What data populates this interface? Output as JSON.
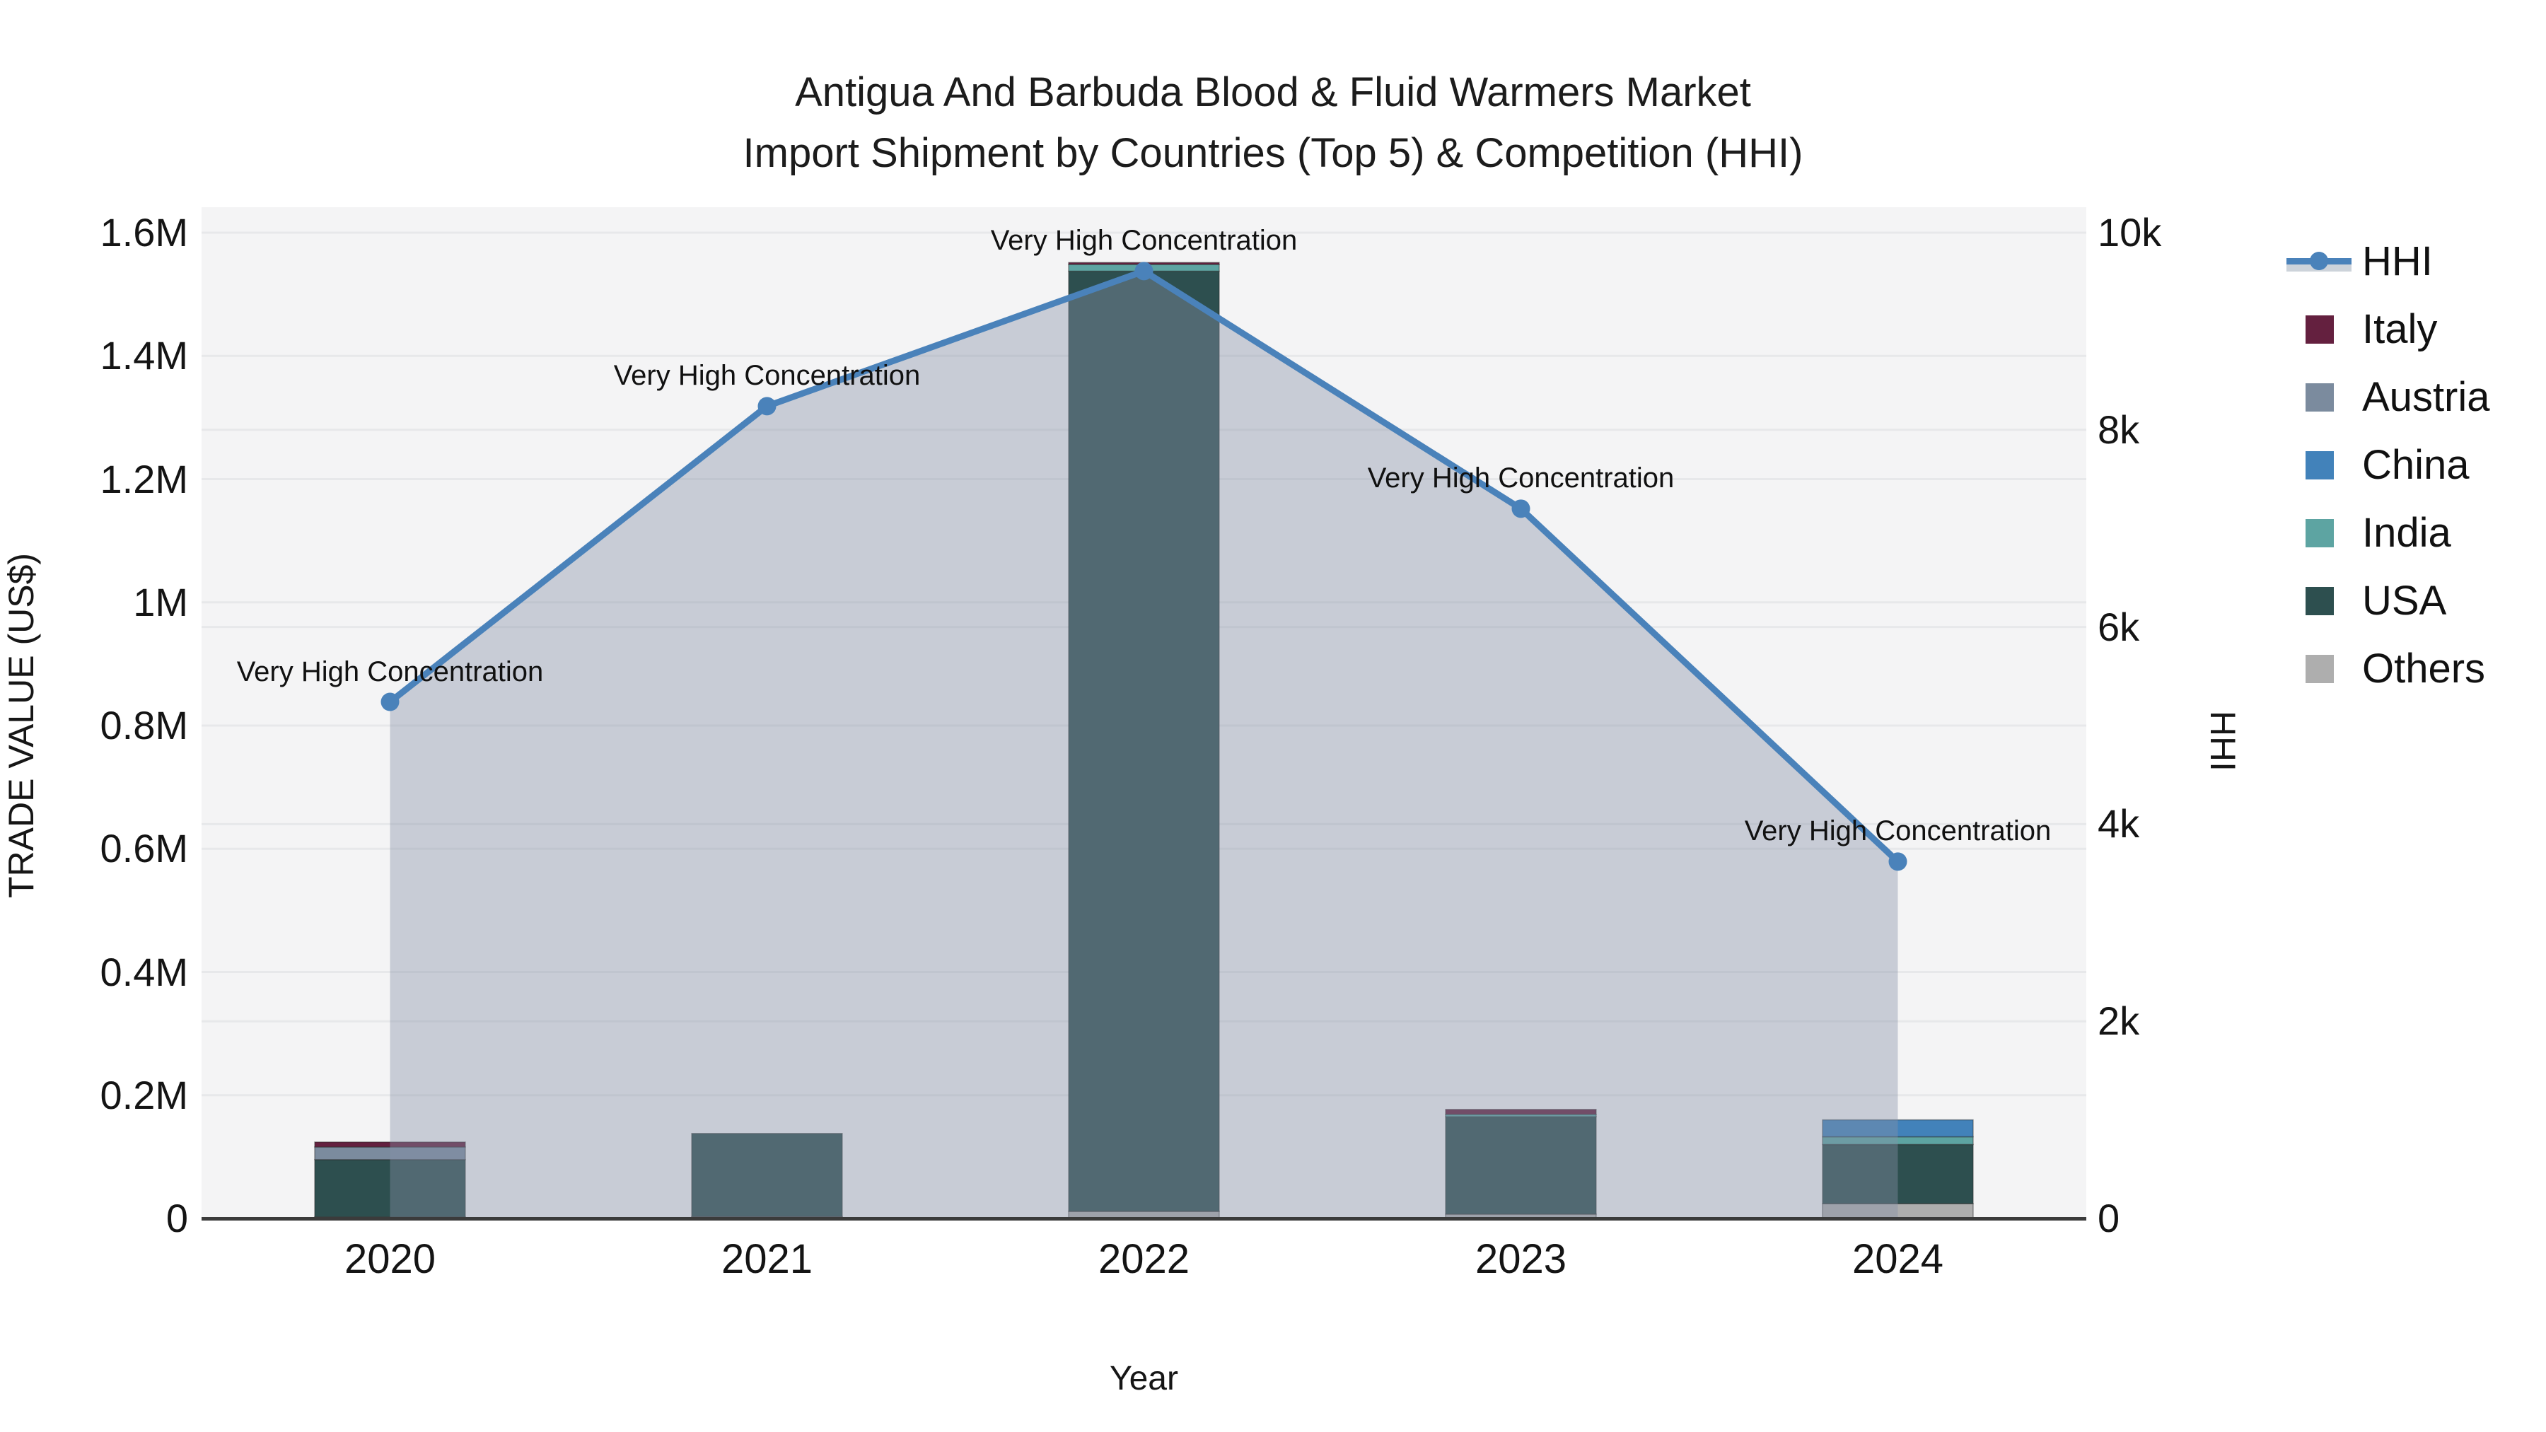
{
  "title": {
    "line1": "Antigua And Barbuda Blood & Fluid Warmers Market",
    "line2": "Import Shipment by Countries (Top 5) & Competition (HHI)"
  },
  "axes": {
    "x": {
      "title": "Year",
      "categories": [
        "2020",
        "2021",
        "2022",
        "2023",
        "2024"
      ]
    },
    "y_left": {
      "title": "TRADE VALUE (US$)",
      "max": 1600000,
      "ticks": [
        {
          "value": 0,
          "label": "0"
        },
        {
          "value": 200000,
          "label": "0.2M"
        },
        {
          "value": 400000,
          "label": "0.4M"
        },
        {
          "value": 600000,
          "label": "0.6M"
        },
        {
          "value": 800000,
          "label": "0.8M"
        },
        {
          "value": 1000000,
          "label": "1M"
        },
        {
          "value": 1200000,
          "label": "1.2M"
        },
        {
          "value": 1400000,
          "label": "1.4M"
        },
        {
          "value": 1600000,
          "label": "1.6M"
        }
      ]
    },
    "y_right": {
      "title": "HHI",
      "max": 10000,
      "ticks": [
        {
          "value": 0,
          "label": "0"
        },
        {
          "value": 2000,
          "label": "2k"
        },
        {
          "value": 4000,
          "label": "4k"
        },
        {
          "value": 6000,
          "label": "6k"
        },
        {
          "value": 8000,
          "label": "8k"
        },
        {
          "value": 10000,
          "label": "10k"
        }
      ]
    }
  },
  "colors": {
    "hhi_line": "#4a82ba",
    "hhi_fill": "rgba(134,146,167,0.40)",
    "italy": "#64203f",
    "austria": "#7b8b9e",
    "china": "#4282ba",
    "india": "#5da4a2",
    "usa": "#2d4f4f",
    "others": "#aeaeae",
    "plot_bg": "#f4f4f5",
    "gridline": "#e7e8ea",
    "axis_line": "#3b3b3b"
  },
  "legend": [
    {
      "key": "hhi",
      "label": "HHI",
      "type": "line"
    },
    {
      "key": "italy",
      "label": "Italy",
      "type": "square",
      "color": "#64203f"
    },
    {
      "key": "austria",
      "label": "Austria",
      "type": "square",
      "color": "#7b8b9e"
    },
    {
      "key": "china",
      "label": "China",
      "type": "square",
      "color": "#4282ba"
    },
    {
      "key": "india",
      "label": "India",
      "type": "square",
      "color": "#5da4a2"
    },
    {
      "key": "usa",
      "label": "USA",
      "type": "square",
      "color": "#2d4f4f"
    },
    {
      "key": "others",
      "label": "Others",
      "type": "square",
      "color": "#aeaeae"
    }
  ],
  "chart_data": {
    "type": "bar+line",
    "categories": [
      "2020",
      "2021",
      "2022",
      "2023",
      "2024"
    ],
    "bar_stack_order_bottom_to_top": [
      "Others",
      "USA",
      "India",
      "China",
      "Austria",
      "Italy"
    ],
    "bar_series": [
      {
        "name": "Others",
        "color": "#aeaeae",
        "values": [
          2500,
          3000,
          11500,
          7000,
          24000
        ]
      },
      {
        "name": "USA",
        "color": "#2d4f4f",
        "values": [
          93000,
          135000,
          1526000,
          158000,
          96000
        ]
      },
      {
        "name": "India",
        "color": "#5da4a2",
        "values": [
          0,
          0,
          11000,
          4000,
          12500
        ]
      },
      {
        "name": "China",
        "color": "#4282ba",
        "values": [
          0,
          0,
          0,
          0,
          27500
        ]
      },
      {
        "name": "Austria",
        "color": "#7b8b9e",
        "values": [
          20500,
          0,
          0,
          0,
          0
        ]
      },
      {
        "name": "Italy",
        "color": "#64203f",
        "values": [
          8000,
          0,
          3000,
          8000,
          0
        ]
      }
    ],
    "bar_totals": [
      124000,
      138000,
      1551500,
      177000,
      160000
    ],
    "line_series": {
      "name": "HHI",
      "axis": "right",
      "color": "#4a82ba",
      "fill": "tozeroy",
      "values": [
        5240,
        8240,
        9610,
        7200,
        3620
      ]
    },
    "annotations": [
      {
        "category": "2020",
        "text": "Very High Concentration"
      },
      {
        "category": "2021",
        "text": "Very High Concentration"
      },
      {
        "category": "2022",
        "text": "Very High Concentration"
      },
      {
        "category": "2023",
        "text": "Very High Concentration"
      },
      {
        "category": "2024",
        "text": "Very High Concentration"
      }
    ],
    "xlabel": "Year",
    "ylabel_left": "TRADE VALUE (US$)",
    "ylabel_right": "HHI",
    "ylim_left": [
      0,
      1600000
    ],
    "ylim_right": [
      0,
      10000
    ],
    "grid": true,
    "legend_position": "right"
  }
}
